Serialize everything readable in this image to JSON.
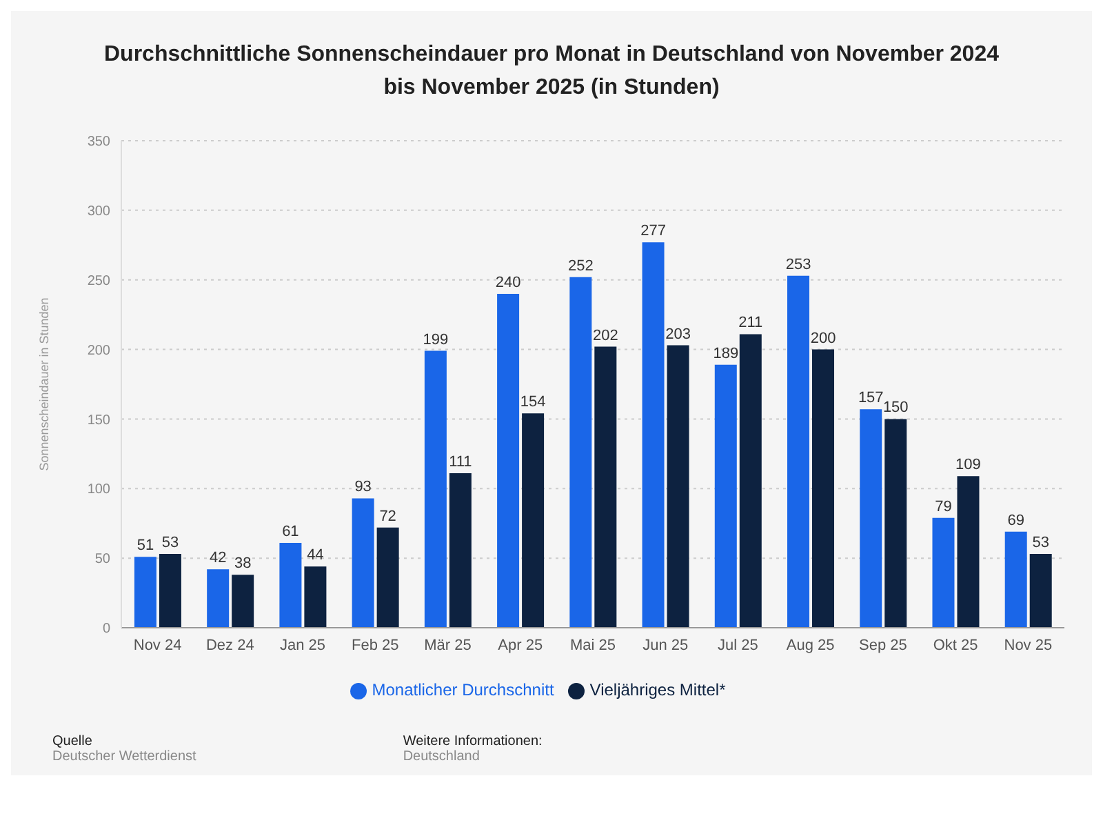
{
  "chart_data": {
    "type": "bar",
    "title": "Durchschnittliche Sonnenscheindauer pro Monat in Deutschland von November 2024 bis November 2025 (in Stunden)",
    "ylabel": "Sonnenscheindauer in Stunden",
    "categories": [
      "Nov 24",
      "Dez 24",
      "Jan 25",
      "Feb 25",
      "Mär 25",
      "Apr 25",
      "Mai 25",
      "Jun 25",
      "Jul 25",
      "Aug 25",
      "Sep 25",
      "Okt 25",
      "Nov 25"
    ],
    "series": [
      {
        "name": "Monatlicher Durchschnitt",
        "color": "#1a66e8",
        "values": [
          51,
          42,
          61,
          93,
          199,
          240,
          252,
          277,
          189,
          253,
          157,
          79,
          69
        ]
      },
      {
        "name": "Vieljähriges Mittel*",
        "color": "#0d2240",
        "values": [
          53,
          38,
          44,
          72,
          111,
          154,
          202,
          203,
          211,
          200,
          150,
          109,
          53
        ]
      }
    ],
    "ylim": [
      0,
      350
    ],
    "yticks": [
      0,
      50,
      100,
      150,
      200,
      250,
      300,
      350
    ],
    "grid": "y",
    "legend": "bottom",
    "data_labels": true,
    "annotations": [
      "Quelle",
      "Deutscher Wetterdienst",
      "Weitere Informationen:",
      "Deutschland"
    ]
  }
}
